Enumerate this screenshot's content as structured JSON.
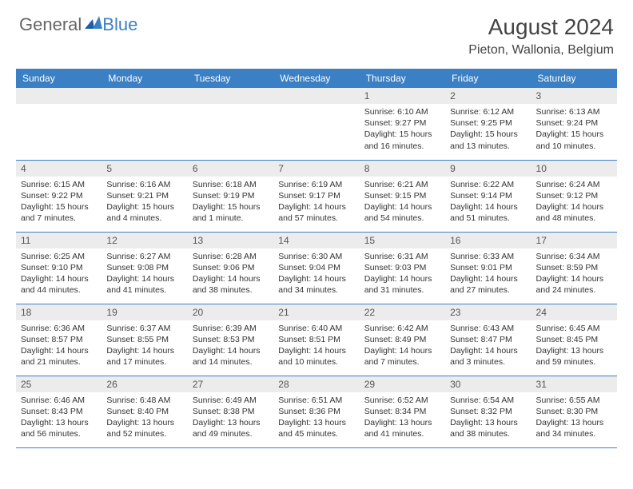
{
  "logo": {
    "text1": "General",
    "text2": "Blue"
  },
  "title": "August 2024",
  "location": "Pieton, Wallonia, Belgium",
  "colors": {
    "header_bg": "#3b7fc4",
    "daynum_bg": "#ececec",
    "border": "#3b7fc4"
  },
  "weekdays": [
    "Sunday",
    "Monday",
    "Tuesday",
    "Wednesday",
    "Thursday",
    "Friday",
    "Saturday"
  ],
  "weeks": [
    [
      null,
      null,
      null,
      null,
      {
        "n": "1",
        "sr": "6:10 AM",
        "ss": "9:27 PM",
        "dl": "15 hours and 16 minutes."
      },
      {
        "n": "2",
        "sr": "6:12 AM",
        "ss": "9:25 PM",
        "dl": "15 hours and 13 minutes."
      },
      {
        "n": "3",
        "sr": "6:13 AM",
        "ss": "9:24 PM",
        "dl": "15 hours and 10 minutes."
      }
    ],
    [
      {
        "n": "4",
        "sr": "6:15 AM",
        "ss": "9:22 PM",
        "dl": "15 hours and 7 minutes."
      },
      {
        "n": "5",
        "sr": "6:16 AM",
        "ss": "9:21 PM",
        "dl": "15 hours and 4 minutes."
      },
      {
        "n": "6",
        "sr": "6:18 AM",
        "ss": "9:19 PM",
        "dl": "15 hours and 1 minute."
      },
      {
        "n": "7",
        "sr": "6:19 AM",
        "ss": "9:17 PM",
        "dl": "14 hours and 57 minutes."
      },
      {
        "n": "8",
        "sr": "6:21 AM",
        "ss": "9:15 PM",
        "dl": "14 hours and 54 minutes."
      },
      {
        "n": "9",
        "sr": "6:22 AM",
        "ss": "9:14 PM",
        "dl": "14 hours and 51 minutes."
      },
      {
        "n": "10",
        "sr": "6:24 AM",
        "ss": "9:12 PM",
        "dl": "14 hours and 48 minutes."
      }
    ],
    [
      {
        "n": "11",
        "sr": "6:25 AM",
        "ss": "9:10 PM",
        "dl": "14 hours and 44 minutes."
      },
      {
        "n": "12",
        "sr": "6:27 AM",
        "ss": "9:08 PM",
        "dl": "14 hours and 41 minutes."
      },
      {
        "n": "13",
        "sr": "6:28 AM",
        "ss": "9:06 PM",
        "dl": "14 hours and 38 minutes."
      },
      {
        "n": "14",
        "sr": "6:30 AM",
        "ss": "9:04 PM",
        "dl": "14 hours and 34 minutes."
      },
      {
        "n": "15",
        "sr": "6:31 AM",
        "ss": "9:03 PM",
        "dl": "14 hours and 31 minutes."
      },
      {
        "n": "16",
        "sr": "6:33 AM",
        "ss": "9:01 PM",
        "dl": "14 hours and 27 minutes."
      },
      {
        "n": "17",
        "sr": "6:34 AM",
        "ss": "8:59 PM",
        "dl": "14 hours and 24 minutes."
      }
    ],
    [
      {
        "n": "18",
        "sr": "6:36 AM",
        "ss": "8:57 PM",
        "dl": "14 hours and 21 minutes."
      },
      {
        "n": "19",
        "sr": "6:37 AM",
        "ss": "8:55 PM",
        "dl": "14 hours and 17 minutes."
      },
      {
        "n": "20",
        "sr": "6:39 AM",
        "ss": "8:53 PM",
        "dl": "14 hours and 14 minutes."
      },
      {
        "n": "21",
        "sr": "6:40 AM",
        "ss": "8:51 PM",
        "dl": "14 hours and 10 minutes."
      },
      {
        "n": "22",
        "sr": "6:42 AM",
        "ss": "8:49 PM",
        "dl": "14 hours and 7 minutes."
      },
      {
        "n": "23",
        "sr": "6:43 AM",
        "ss": "8:47 PM",
        "dl": "14 hours and 3 minutes."
      },
      {
        "n": "24",
        "sr": "6:45 AM",
        "ss": "8:45 PM",
        "dl": "13 hours and 59 minutes."
      }
    ],
    [
      {
        "n": "25",
        "sr": "6:46 AM",
        "ss": "8:43 PM",
        "dl": "13 hours and 56 minutes."
      },
      {
        "n": "26",
        "sr": "6:48 AM",
        "ss": "8:40 PM",
        "dl": "13 hours and 52 minutes."
      },
      {
        "n": "27",
        "sr": "6:49 AM",
        "ss": "8:38 PM",
        "dl": "13 hours and 49 minutes."
      },
      {
        "n": "28",
        "sr": "6:51 AM",
        "ss": "8:36 PM",
        "dl": "13 hours and 45 minutes."
      },
      {
        "n": "29",
        "sr": "6:52 AM",
        "ss": "8:34 PM",
        "dl": "13 hours and 41 minutes."
      },
      {
        "n": "30",
        "sr": "6:54 AM",
        "ss": "8:32 PM",
        "dl": "13 hours and 38 minutes."
      },
      {
        "n": "31",
        "sr": "6:55 AM",
        "ss": "8:30 PM",
        "dl": "13 hours and 34 minutes."
      }
    ]
  ],
  "labels": {
    "sunrise": "Sunrise: ",
    "sunset": "Sunset: ",
    "daylight": "Daylight: "
  }
}
